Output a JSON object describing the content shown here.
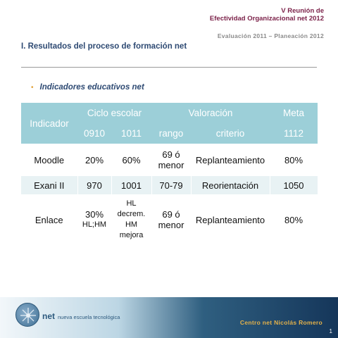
{
  "header": {
    "title_line1": "V Reunión de",
    "title_line2": "Efectividad Organizacional net 2012",
    "subtitle": "Evaluación 2011 – Planeación 2012"
  },
  "section_title": "I. Resultados del proceso de formación net",
  "bullet": {
    "glyph": "•",
    "text": "Indicadores educativos net"
  },
  "table": {
    "headers": {
      "indicador": "Indicador",
      "ciclo": "Ciclo escolar",
      "valoracion": "Valoración",
      "meta": "Meta",
      "y0910": "0910",
      "y1011": "1011",
      "rango": "rango",
      "criterio": "criterio",
      "meta_value": "1112"
    },
    "rows": [
      {
        "indicador": "Moodle",
        "v0910": "20%",
        "v1011": "60%",
        "rango_1": "69 ó",
        "rango_2": "menor",
        "criterio": "Replanteamiento",
        "meta": "80%"
      },
      {
        "indicador": "Exani II",
        "v0910": "970",
        "v1011": "1001",
        "rango": "70-79",
        "criterio": "Reorientación",
        "meta": "1050"
      },
      {
        "indicador": "Enlace",
        "v0910_1": "30%",
        "v0910_2": "HL;HM",
        "v1011_1": "HL",
        "v1011_2": "decrem.",
        "v1011_3": "HM",
        "v1011_4": "mejora",
        "rango_1": "69 ó",
        "rango_2": "menor",
        "criterio": "Replanteamiento",
        "meta": "80%"
      }
    ]
  },
  "footer": {
    "brand_net": "net",
    "brand_rest": "nueva escuela tecnológica",
    "center_name": "Centro net Nicolás Romero",
    "page_number": "1"
  },
  "colors": {
    "title": "#7a1f47",
    "section": "#2e4a73",
    "table_header": "#9ccfd8",
    "row_alt": "#e8f2f4",
    "bullet": "#e2a23a",
    "footer_text": "#e3b14a"
  },
  "icons": {
    "logo": "net-logo-icon"
  }
}
